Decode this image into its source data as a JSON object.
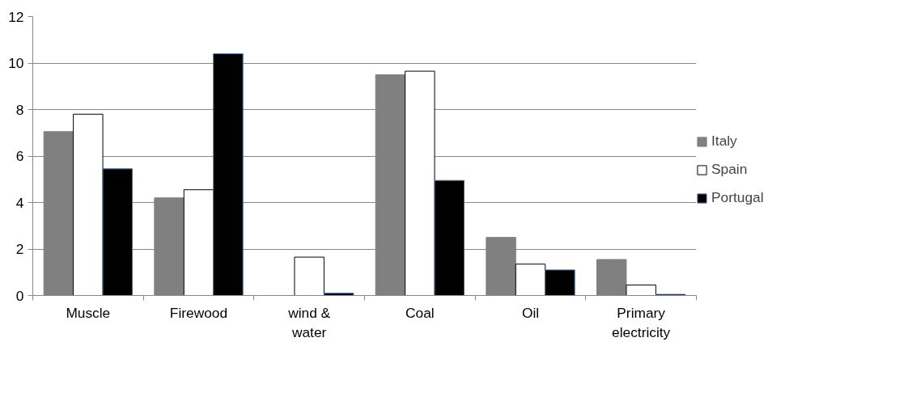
{
  "chart_data": {
    "type": "bar",
    "categories": [
      "Muscle",
      "Firewood",
      "wind & water",
      "Coal",
      "Oil",
      "Primary electricity"
    ],
    "series": [
      {
        "name": "Italy",
        "color": "#808080",
        "values": [
          7.05,
          4.2,
          0,
          9.5,
          2.5,
          1.55
        ]
      },
      {
        "name": "Spain",
        "color": "#ffffff",
        "values": [
          7.8,
          4.55,
          1.65,
          9.65,
          1.35,
          0.45
        ]
      },
      {
        "name": "Portugal",
        "color": "#000000",
        "values": [
          5.45,
          10.4,
          0.1,
          4.95,
          1.1,
          0.05
        ]
      }
    ],
    "ylim": [
      0,
      12
    ],
    "yticks": [
      0,
      2,
      4,
      6,
      8,
      10,
      12
    ],
    "grid": "y",
    "legend": "right"
  }
}
